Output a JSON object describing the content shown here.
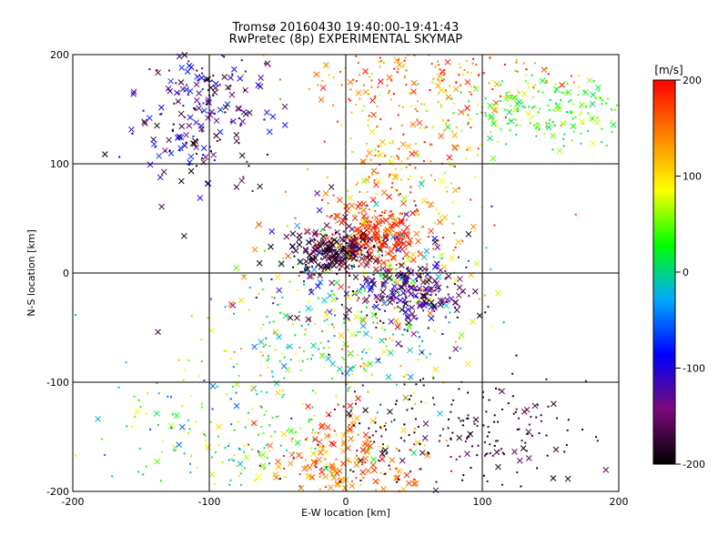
{
  "chart_data": {
    "type": "scatter",
    "title": "Tromsø 20160430 19:40:00-19:41:43",
    "subtitle": "RwPretec (8p) EXPERIMENTAL SKYMAP",
    "xlabel": "E-W location [km]",
    "ylabel": "N-S location [km]",
    "xlim": [
      -200,
      200
    ],
    "ylim": [
      -200,
      200
    ],
    "xticks": [
      "-200",
      "-100",
      "0",
      "100",
      "200"
    ],
    "yticks": [
      "-200",
      "-100",
      "0",
      "100",
      "200"
    ],
    "grid": true,
    "colorbar": {
      "label": "[m/s]",
      "min": -200,
      "max": 200,
      "ticks": [
        "200",
        "100",
        "0",
        "-100",
        "-200"
      ],
      "colors": [
        "#000000",
        "#7a0a7a",
        "#0000ff",
        "#00aaff",
        "#00ff00",
        "#ffff00",
        "#ff8000",
        "#ff0000"
      ]
    },
    "marker_types": [
      "x",
      "dot"
    ],
    "clusters": [
      {
        "region": "central",
        "center": [
          15,
          0
        ],
        "spread": [
          45,
          35
        ],
        "velocity_range": [
          -200,
          200
        ],
        "marker": "x"
      },
      {
        "region": "north-central",
        "center": [
          20,
          35
        ],
        "spread": [
          20,
          15
        ],
        "velocity_range": [
          150,
          200
        ],
        "marker": "x"
      },
      {
        "region": "central-west",
        "center": [
          -10,
          20
        ],
        "spread": [
          15,
          10
        ],
        "velocity_range": [
          -200,
          -150
        ],
        "marker": "x"
      },
      {
        "region": "east-central",
        "center": [
          50,
          -20
        ],
        "spread": [
          20,
          15
        ],
        "velocity_range": [
          -200,
          -80
        ],
        "marker": "x"
      },
      {
        "region": "north-west",
        "center": [
          -110,
          150
        ],
        "spread": [
          25,
          35
        ],
        "velocity_range": [
          -200,
          -60
        ],
        "marker": "x"
      },
      {
        "region": "north-north",
        "center": [
          60,
          180
        ],
        "spread": [
          50,
          25
        ],
        "velocity_range": [
          100,
          200
        ],
        "marker": "dot"
      },
      {
        "region": "north-east",
        "center": [
          150,
          150
        ],
        "spread": [
          40,
          15
        ],
        "velocity_range": [
          0,
          80
        ],
        "marker": "dot"
      },
      {
        "region": "south",
        "center": [
          0,
          -175
        ],
        "spread": [
          30,
          25
        ],
        "velocity_range": [
          100,
          200
        ],
        "marker": "x"
      },
      {
        "region": "south-east",
        "center": [
          80,
          -150
        ],
        "spread": [
          50,
          30
        ],
        "velocity_range": [
          -200,
          -150
        ],
        "marker": "dot"
      },
      {
        "region": "south-west",
        "center": [
          -80,
          -150
        ],
        "spread": [
          50,
          35
        ],
        "velocity_range": [
          -60,
          120
        ],
        "marker": "dot"
      },
      {
        "region": "north-mid",
        "center": [
          40,
          90
        ],
        "spread": [
          30,
          40
        ],
        "velocity_range": [
          50,
          200
        ],
        "marker": "dot"
      },
      {
        "region": "mid-south",
        "center": [
          0,
          -60
        ],
        "spread": [
          45,
          30
        ],
        "velocity_range": [
          -50,
          150
        ],
        "marker": "dot"
      }
    ]
  }
}
